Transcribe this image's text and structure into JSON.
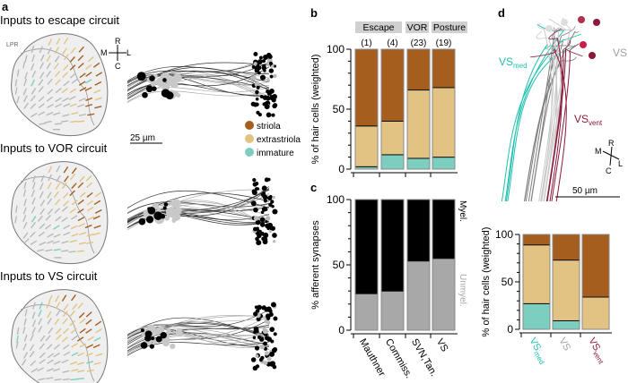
{
  "panel_a": {
    "label": "a",
    "titles": [
      "Inputs to escape circuit",
      "Inputs to VOR circuit",
      "Inputs to VS circuit"
    ],
    "lpr_label": "LPR",
    "compass": {
      "r": "R",
      "m": "M",
      "l": "L",
      "c": "C"
    },
    "scale_bar": "25 µm",
    "legend": [
      {
        "label": "striola",
        "color": "#a65e1e"
      },
      {
        "label": "extrastriola",
        "color": "#e2c383"
      },
      {
        "label": "immature",
        "color": "#7ccfc0"
      }
    ]
  },
  "panel_b": {
    "label": "b",
    "groups": [
      "Escape",
      "VOR",
      "Posture"
    ],
    "counts": [
      "(1)",
      "(4)",
      "(23)",
      "(19)"
    ]
  },
  "panel_c": {
    "label": "c",
    "legend_myel": "Myel.",
    "legend_unmyel": "Unmyel."
  },
  "panel_d": {
    "label": "d",
    "vs_med": {
      "main": "VS",
      "sub": "med",
      "color": "#1fbfae"
    },
    "vs": {
      "main": "VS",
      "color": "#a0a0a0"
    },
    "vs_vent": {
      "main": "VS",
      "sub": "vent",
      "color": "#8b1a3a"
    },
    "compass": {
      "r": "R",
      "m": "M",
      "l": "L",
      "c": "C"
    },
    "scale_bar": "50 µm"
  },
  "colors": {
    "striola": "#a65e1e",
    "extrastriola": "#e2c383",
    "immature": "#7ccfc0",
    "myel": "#000000",
    "unmyel": "#a8a8a8"
  },
  "chart_data": [
    {
      "id": "b",
      "type": "bar",
      "stacked": true,
      "categories": [
        "(1)",
        "(4)",
        "(23)",
        "(19)"
      ],
      "ylabel": "% of hair cells (weighted)",
      "ylim": [
        0,
        100
      ],
      "yticks": [
        "0",
        "50",
        "100"
      ],
      "series": [
        {
          "name": "immature",
          "values": [
            2,
            12,
            9,
            10
          ]
        },
        {
          "name": "extrastriola",
          "values": [
            34,
            28,
            57,
            58
          ]
        },
        {
          "name": "striola",
          "values": [
            64,
            60,
            34,
            32
          ]
        }
      ]
    },
    {
      "id": "c",
      "type": "bar",
      "stacked": true,
      "categories": [
        "Mauthner",
        "Commiss.",
        "SVN,Tan.",
        "VS"
      ],
      "ylabel": "% afferent synapses",
      "ylim": [
        0,
        100
      ],
      "yticks": [
        "0",
        "50",
        "100"
      ],
      "series": [
        {
          "name": "Unmyel.",
          "values": [
            28,
            30,
            53,
            55
          ]
        },
        {
          "name": "Myel.",
          "values": [
            72,
            70,
            47,
            45
          ]
        }
      ]
    },
    {
      "id": "e",
      "type": "bar",
      "stacked": true,
      "categories": [
        "VSmed",
        "VS",
        "VSvent"
      ],
      "ylabel": "% of hair cells (weighted)",
      "ylim": [
        0,
        100
      ],
      "yticks": [
        "0",
        "50",
        "100"
      ],
      "series": [
        {
          "name": "immature",
          "values": [
            27,
            9,
            0
          ]
        },
        {
          "name": "extrastriola",
          "values": [
            62,
            64,
            34
          ]
        },
        {
          "name": "striola",
          "values": [
            11,
            27,
            66
          ]
        }
      ]
    }
  ]
}
